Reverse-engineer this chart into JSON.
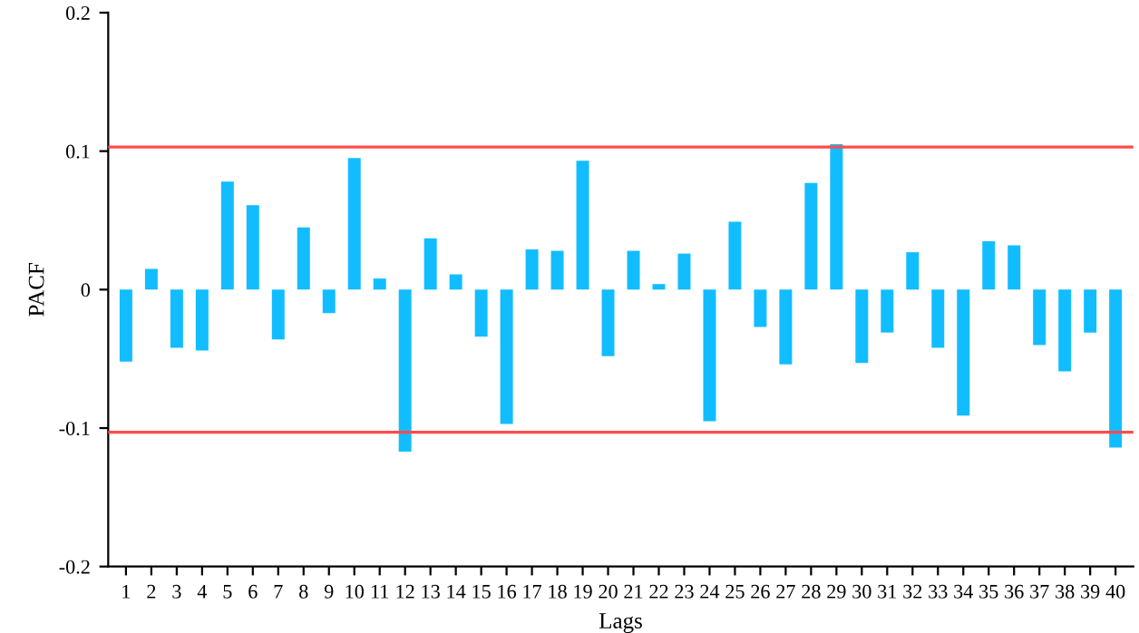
{
  "chart_data": {
    "type": "bar",
    "xlabel": "Lags",
    "ylabel": "PACF",
    "categories": [
      "1",
      "2",
      "3",
      "4",
      "5",
      "6",
      "7",
      "8",
      "9",
      "10",
      "11",
      "12",
      "13",
      "14",
      "15",
      "16",
      "17",
      "18",
      "19",
      "20",
      "21",
      "22",
      "23",
      "24",
      "25",
      "26",
      "27",
      "28",
      "29",
      "30",
      "31",
      "32",
      "33",
      "34",
      "35",
      "36",
      "37",
      "38",
      "39",
      "40"
    ],
    "series": [
      {
        "color": "#12bdff",
        "values": [
          -0.052,
          0.015,
          -0.042,
          -0.044,
          0.078,
          0.061,
          -0.036,
          0.045,
          -0.017,
          0.095,
          0.008,
          -0.117,
          0.037,
          0.011,
          -0.034,
          -0.097,
          0.029,
          0.028,
          0.093,
          -0.048,
          0.028,
          0.004,
          0.026,
          -0.095,
          0.049,
          -0.027,
          -0.054,
          0.077,
          0.105,
          -0.053,
          -0.031,
          0.027,
          -0.042,
          -0.091,
          0.035,
          0.032,
          -0.04,
          -0.059,
          -0.031,
          -0.114
        ]
      }
    ],
    "ylim": [
      -0.2,
      0.2
    ],
    "yticks": [
      -0.2,
      -0.1,
      0,
      0.1,
      0.2
    ],
    "ref_lines": [
      {
        "axis": "y",
        "value": 0.103,
        "color": "#ff4d4d"
      },
      {
        "axis": "y",
        "value": -0.103,
        "color": "#ff4d4d"
      }
    ],
    "grid": false,
    "legend": false
  }
}
